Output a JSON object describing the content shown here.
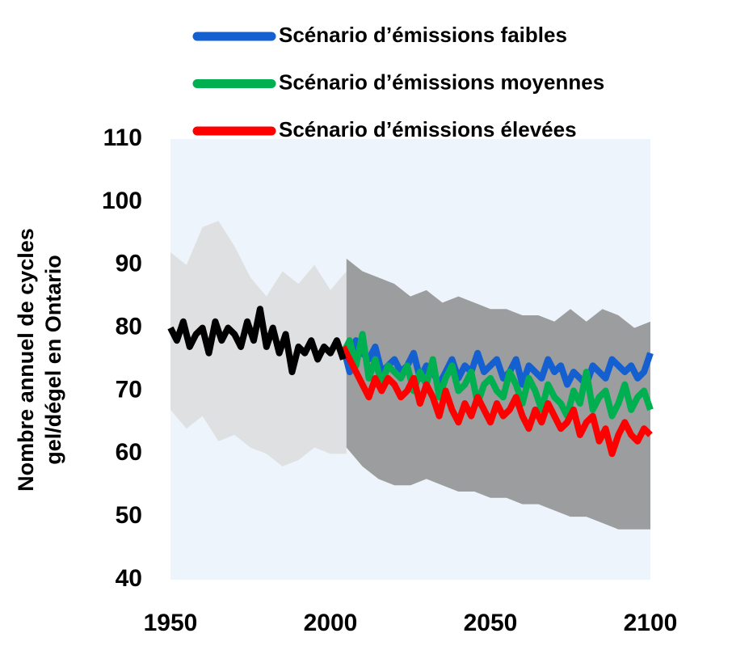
{
  "chart_data": {
    "type": "line",
    "ylabel": [
      "Nombre annuel de cycles",
      "gel/dégel en Ontario"
    ],
    "xlim": [
      1950,
      2100
    ],
    "xticks": [
      1950,
      2000,
      2050,
      2100
    ],
    "ylim": [
      40,
      110
    ],
    "yticks": [
      40,
      50,
      60,
      70,
      80,
      90,
      100,
      110
    ],
    "grid": false,
    "background": "#edf4fc",
    "bands": [
      {
        "color": "#d9d9d9",
        "x": [
          1950,
          1955,
          1960,
          1965,
          1970,
          1975,
          1980,
          1985,
          1990,
          1995,
          2000,
          2005
        ],
        "low": [
          67,
          64,
          66,
          62,
          63,
          61,
          60,
          58,
          59,
          61,
          60,
          60
        ],
        "high": [
          92,
          90,
          96,
          97,
          93,
          88,
          85,
          89,
          87,
          90,
          86,
          89
        ]
      },
      {
        "color": "#808080",
        "x": [
          2005,
          2010,
          2015,
          2020,
          2025,
          2030,
          2035,
          2040,
          2045,
          2050,
          2055,
          2060,
          2065,
          2070,
          2075,
          2080,
          2085,
          2090,
          2095,
          2100
        ],
        "low": [
          61,
          58,
          56,
          55,
          55,
          56,
          55,
          54,
          54,
          53,
          53,
          52,
          52,
          51,
          50,
          50,
          49,
          48,
          48,
          48
        ],
        "high": [
          91,
          89,
          88,
          87,
          85,
          86,
          84,
          85,
          84,
          83,
          83,
          82,
          82,
          81,
          83,
          81,
          83,
          82,
          80,
          81
        ]
      }
    ],
    "series": [
      {
        "name": "Scénario d’émissions faibles",
        "color": "#1560d0",
        "x": [
          2004,
          2006,
          2008,
          2010,
          2012,
          2014,
          2016,
          2018,
          2020,
          2022,
          2024,
          2026,
          2028,
          2030,
          2032,
          2034,
          2036,
          2038,
          2040,
          2042,
          2044,
          2046,
          2048,
          2050,
          2052,
          2054,
          2056,
          2058,
          2060,
          2062,
          2064,
          2066,
          2068,
          2070,
          2072,
          2074,
          2076,
          2078,
          2080,
          2082,
          2084,
          2086,
          2088,
          2090,
          2092,
          2094,
          2096,
          2098,
          2100
        ],
        "values": [
          77,
          73,
          78,
          76,
          75,
          77,
          73,
          74,
          75,
          73,
          74,
          76,
          72,
          74,
          73,
          71,
          73,
          75,
          72,
          74,
          73,
          76,
          73,
          74,
          75,
          72,
          73,
          75,
          71,
          74,
          73,
          72,
          75,
          73,
          74,
          71,
          73,
          72,
          71,
          74,
          73,
          72,
          75,
          74,
          73,
          74,
          72,
          73,
          76
        ]
      },
      {
        "name": "Scénario d’émissions moyennes",
        "color": "#00b050",
        "x": [
          2004,
          2006,
          2008,
          2010,
          2012,
          2014,
          2016,
          2018,
          2020,
          2022,
          2024,
          2026,
          2028,
          2030,
          2032,
          2034,
          2036,
          2038,
          2040,
          2042,
          2044,
          2046,
          2048,
          2050,
          2052,
          2054,
          2056,
          2058,
          2060,
          2062,
          2064,
          2066,
          2068,
          2070,
          2072,
          2074,
          2076,
          2078,
          2080,
          2082,
          2084,
          2086,
          2088,
          2090,
          2092,
          2094,
          2096,
          2098,
          2100
        ],
        "values": [
          76,
          78,
          74,
          79,
          72,
          75,
          71,
          74,
          73,
          72,
          74,
          70,
          73,
          71,
          75,
          69,
          72,
          74,
          70,
          71,
          73,
          68,
          71,
          72,
          70,
          69,
          73,
          71,
          68,
          72,
          70,
          67,
          71,
          69,
          68,
          66,
          70,
          68,
          73,
          67,
          69,
          70,
          66,
          68,
          71,
          67,
          69,
          70,
          67
        ]
      },
      {
        "name": "Scénario d’émissions élevées",
        "color": "#ff0000",
        "x": [
          2004,
          2006,
          2008,
          2010,
          2012,
          2014,
          2016,
          2018,
          2020,
          2022,
          2024,
          2026,
          2028,
          2030,
          2032,
          2034,
          2036,
          2038,
          2040,
          2042,
          2044,
          2046,
          2048,
          2050,
          2052,
          2054,
          2056,
          2058,
          2060,
          2062,
          2064,
          2066,
          2068,
          2070,
          2072,
          2074,
          2076,
          2078,
          2080,
          2082,
          2084,
          2086,
          2088,
          2090,
          2092,
          2094,
          2096,
          2098,
          2100
        ],
        "values": [
          77,
          75,
          73,
          71,
          69,
          72,
          70,
          72,
          71,
          69,
          70,
          72,
          68,
          71,
          69,
          66,
          70,
          67,
          65,
          68,
          66,
          69,
          67,
          65,
          68,
          66,
          67,
          69,
          66,
          64,
          67,
          65,
          68,
          66,
          64,
          65,
          67,
          63,
          65,
          66,
          62,
          64,
          60,
          63,
          65,
          63,
          62,
          64,
          63
        ]
      },
      {
        "color": "#000000",
        "x": [
          1950,
          1952,
          1954,
          1956,
          1958,
          1960,
          1962,
          1964,
          1966,
          1968,
          1970,
          1972,
          1974,
          1976,
          1978,
          1980,
          1982,
          1984,
          1986,
          1988,
          1990,
          1992,
          1994,
          1996,
          1998,
          2000,
          2002,
          2004
        ],
        "values": [
          80,
          78,
          81,
          77,
          79,
          80,
          76,
          81,
          78,
          80,
          79,
          77,
          81,
          78,
          83,
          77,
          80,
          76,
          79,
          73,
          77,
          76,
          78,
          75,
          77,
          76,
          78,
          75
        ]
      }
    ]
  }
}
